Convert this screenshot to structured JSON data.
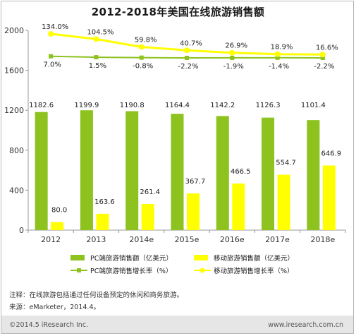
{
  "chart_data": {
    "type": "bar",
    "title": "2012-2018年美国在线旅游销售额",
    "categories": [
      "2012",
      "2013",
      "2014e",
      "2015e",
      "2016e",
      "2017e",
      "2018e"
    ],
    "ylim": [
      0,
      2000
    ],
    "yticks": [
      "0",
      "400",
      "800",
      "1200",
      "1600",
      "2000"
    ],
    "grid": false,
    "legend_position": "bottom",
    "series": [
      {
        "name": "PC端旅游销售额（亿美元）",
        "kind": "bar",
        "color": "#8dc21f",
        "values": [
          1182.6,
          1199.9,
          1190.8,
          1164.4,
          1142.2,
          1126.3,
          1101.4
        ],
        "labels": [
          "1182.6",
          "1199.9",
          "1190.8",
          "1164.4",
          "1142.2",
          "1126.3",
          "1101.4"
        ]
      },
      {
        "name": "移动旅游销售额（亿美元）",
        "kind": "bar",
        "color": "#ffff00",
        "values": [
          80.0,
          163.6,
          261.4,
          367.7,
          466.5,
          554.7,
          646.9
        ],
        "labels": [
          "80.0",
          "163.6",
          "261.4",
          "367.7",
          "466.5",
          "554.7",
          "646.9"
        ]
      },
      {
        "name": "PC端旅游销售增长率（%）",
        "kind": "line",
        "color": "#8dc21f",
        "values": [
          7.0,
          1.5,
          -0.8,
          -2.2,
          -1.9,
          -1.4,
          -2.2
        ],
        "labels": [
          "7.0%",
          "1.5%",
          "-0.8%",
          "-2.2%",
          "-1.9%",
          "-1.4%",
          "-2.2%"
        ]
      },
      {
        "name": "移动旅游销售增长率（%）",
        "kind": "line",
        "color": "#ffff00",
        "values": [
          134.0,
          104.5,
          59.8,
          40.7,
          26.9,
          18.9,
          16.6
        ],
        "labels": [
          "134.0%",
          "104.5%",
          "59.8%",
          "40.7%",
          "26.9%",
          "18.9%",
          "16.6%"
        ]
      }
    ]
  },
  "notes": [
    "注释：在线旅游包括通过任何设备预定的休闲和商务旅游。",
    "来源：eMarketer，2014.4。"
  ],
  "footer": {
    "copyright": "©2014.5 iResearch Inc.",
    "website": "www.iresearch.com.cn"
  }
}
